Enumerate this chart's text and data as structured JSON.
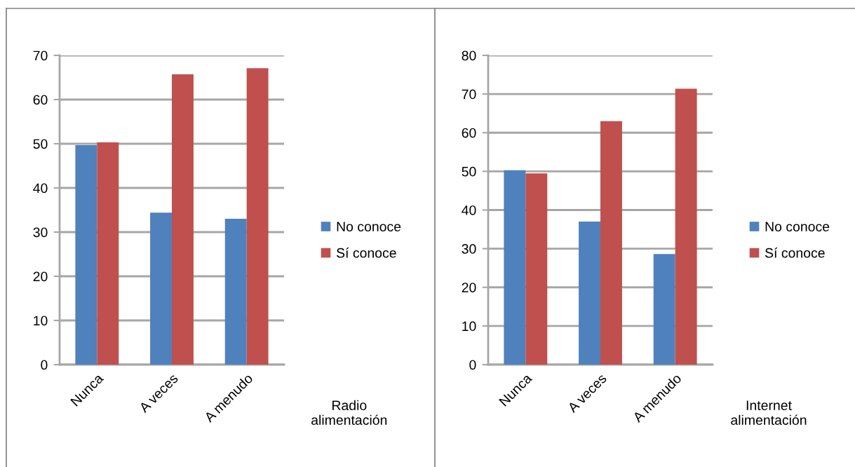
{
  "chart_data": [
    {
      "type": "bar",
      "categories": [
        "Nunca",
        "A veces",
        "A menudo"
      ],
      "xlabel": "Radio\nalimentación",
      "series": [
        {
          "name": "No conoce",
          "color": "#4f81bd",
          "values": [
            49.7,
            34.4,
            33.0
          ]
        },
        {
          "name": "Sí conoce",
          "color": "#c0504d",
          "values": [
            50.3,
            65.7,
            67.1
          ]
        }
      ],
      "ylim": [
        0,
        70
      ],
      "yticks": [
        0,
        10,
        20,
        30,
        40,
        50,
        60,
        70
      ],
      "grid": "y",
      "legend": "right"
    },
    {
      "type": "bar",
      "categories": [
        "Nunca",
        "A veces",
        "A menudo"
      ],
      "xlabel": "Internet\nalimentación",
      "series": [
        {
          "name": "No conoce",
          "color": "#4f81bd",
          "values": [
            50.3,
            37.0,
            28.6
          ]
        },
        {
          "name": "Sí conoce",
          "color": "#c0504d",
          "values": [
            49.5,
            63.0,
            71.4
          ]
        }
      ],
      "ylim": [
        0,
        80
      ],
      "yticks": [
        0,
        10,
        20,
        30,
        40,
        50,
        60,
        70,
        80
      ],
      "grid": "y",
      "legend": "right"
    }
  ]
}
